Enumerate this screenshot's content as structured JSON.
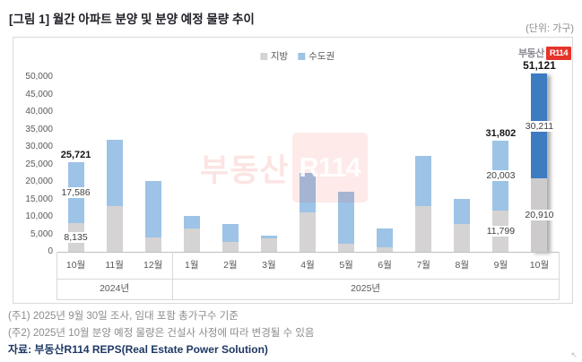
{
  "figure": {
    "title": "[그림 1] 월간 아파트 분양 및 분양 예정 물량 추이",
    "unit_label": "(단위: 가구)"
  },
  "legend": [
    {
      "label": "지방",
      "color": "#D5D3D3"
    },
    {
      "label": "수도권",
      "color": "#9DC3E6"
    }
  ],
  "logo": {
    "text": "부동산",
    "badge": "R114",
    "badge_color": "#E6332A"
  },
  "watermark": {
    "text": "부동산",
    "badge": "R114"
  },
  "chart_data": {
    "type": "bar",
    "stacked": true,
    "unit": "가구",
    "categories": [
      "10월",
      "11월",
      "12월",
      "1월",
      "2월",
      "3월",
      "4월",
      "5월",
      "6월",
      "7월",
      "8월",
      "9월",
      "10월"
    ],
    "year_groups": [
      {
        "label": "2024년",
        "span": 3
      },
      {
        "label": "2025년",
        "span": 10
      }
    ],
    "series": [
      {
        "name": "지방",
        "color": "#D5D3D3",
        "values": [
          8135,
          13000,
          4200,
          6700,
          2900,
          3800,
          11300,
          2300,
          1300,
          13200,
          7900,
          11799,
          20910
        ]
      },
      {
        "name": "수도권",
        "color": "#9DC3E6",
        "values": [
          17586,
          19000,
          16100,
          3500,
          5100,
          900,
          11200,
          15000,
          5300,
          14300,
          7200,
          20003,
          30211
        ]
      }
    ],
    "totals": [
      25721,
      32000,
      20300,
      10200,
      8000,
      4700,
      22500,
      17300,
      6600,
      27500,
      15100,
      31802,
      51121
    ],
    "labeled_indices": [
      0,
      11,
      12
    ],
    "displayed_labels": {
      "col_0": {
        "total": "25,721",
        "metro": "17,586",
        "regional": "8,135"
      },
      "col_11": {
        "total": "31,802",
        "metro": "20,003",
        "regional": "11,799"
      },
      "col_12": {
        "total": "51,121",
        "metro": "30,211",
        "regional": "20,910"
      }
    },
    "highlight": {
      "index": 12,
      "metro_color": "#3D7CC1",
      "regional_color": "#CDCBCB",
      "shadow": true
    },
    "y_axis": {
      "min": 0,
      "max": 50000,
      "step": 5000
    },
    "gridlines": false,
    "legend_position": "top"
  },
  "notes": [
    "(주1) 2025년 9월 30일 조사, 임대 포함 총가구수 기준",
    "(주2) 2025년 10월 분양 예정 물량은 건설사 사정에 따라 변경될 수 있음"
  ],
  "source": "자료: 부동산R114 REPS(Real Estate Power Solution)"
}
